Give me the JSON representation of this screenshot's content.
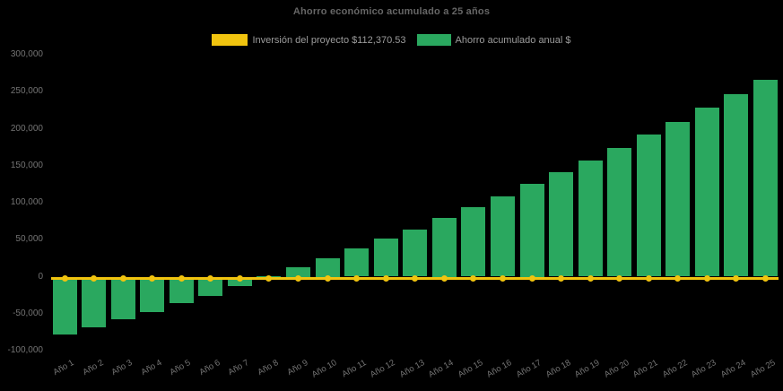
{
  "title": "Ahorro económico acumulado a 25 años",
  "legend": {
    "items": [
      {
        "label": "Inversión del proyecto $112,370.53",
        "color": "#f1c40f"
      },
      {
        "label": "Ahorro acumulado anual $",
        "color": "#2aa85f"
      }
    ]
  },
  "colors": {
    "background": "#000000",
    "bar_green": "#2aa85f",
    "line_yellow": "#f1c40f",
    "title_text": "#666666",
    "axis_text": "#747474",
    "legend_text": "#9c9c9c"
  },
  "chart_data": {
    "type": "bar",
    "title": "Ahorro económico acumulado a 25 años",
    "categories": [
      "Año 1",
      "Año 2",
      "Año 3",
      "Año 4",
      "Año 5",
      "Año 6",
      "Año 7",
      "Año 8",
      "Año 9",
      "Año 10",
      "Año 11",
      "Año 12",
      "Año 13",
      "Año 14",
      "Año 15",
      "Año 16",
      "Año 17",
      "Año 18",
      "Año 19",
      "Año 20",
      "Año 21",
      "Año 22",
      "Año 23",
      "Año 24",
      "Año 25"
    ],
    "series": [
      {
        "name": "Inversión del proyecto $112,370.53",
        "type": "line",
        "color": "#f1c40f",
        "marker": "circle",
        "values": [
          0,
          0,
          0,
          0,
          0,
          0,
          0,
          0,
          0,
          0,
          0,
          0,
          0,
          0,
          0,
          0,
          0,
          0,
          0,
          0,
          0,
          0,
          0,
          0,
          0
        ]
      },
      {
        "name": "Ahorro acumulado anual $",
        "type": "column",
        "color": "#2aa85f",
        "values": [
          -78000,
          -68000,
          -58000,
          -48000,
          -36000,
          -26000,
          -13000,
          500,
          12500,
          25000,
          38000,
          51000,
          64000,
          80000,
          94000,
          109000,
          125000,
          141000,
          157000,
          174000,
          192000,
          209000,
          228000,
          247000,
          266000
        ]
      }
    ],
    "y_axis": {
      "min": -100000,
      "max": 300000,
      "tick_step": 50000,
      "tick_labels": [
        "300,000",
        "250,000",
        "200,000",
        "150,000",
        "100,000",
        "50,000",
        "0",
        "-50,000",
        "-100,000"
      ]
    },
    "x_axis": {
      "label_rotation": -30
    },
    "grid": false,
    "legend_position": "top",
    "ylim": [
      -100000,
      300000
    ]
  }
}
